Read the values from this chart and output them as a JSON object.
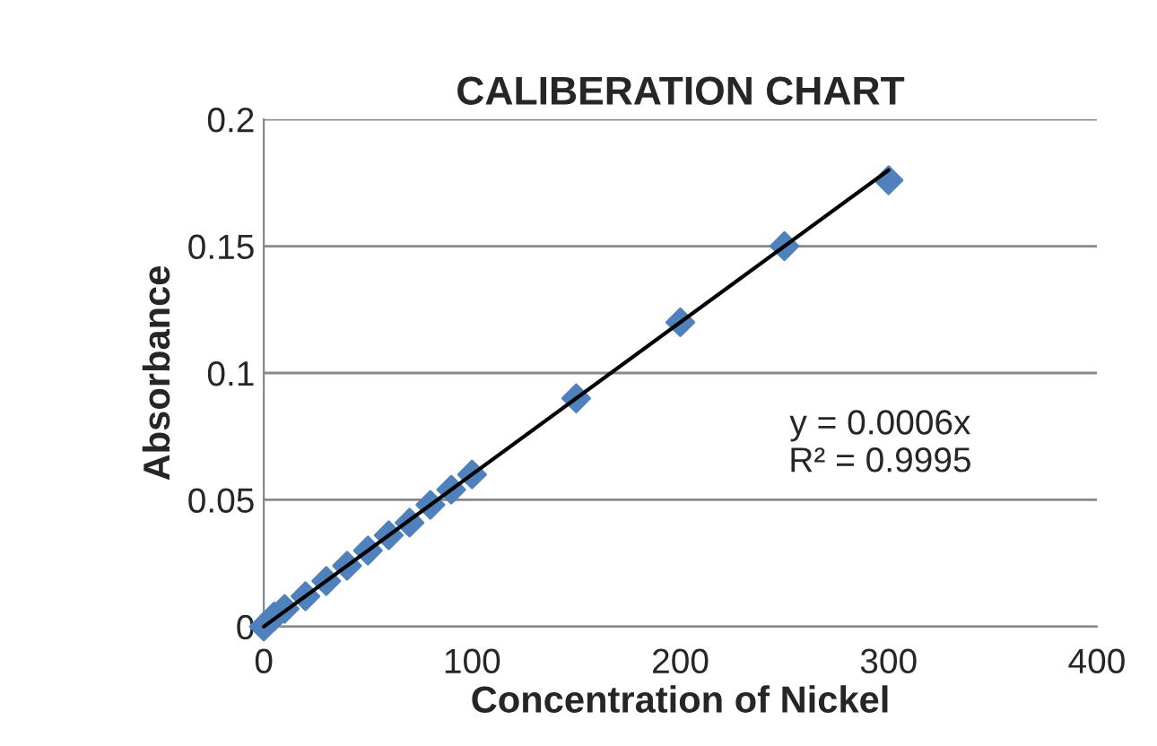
{
  "chart_data": {
    "type": "scatter",
    "title": "CALIBERATION CHART",
    "xlabel": "Concentration of Nickel",
    "ylabel": "Absorbance",
    "xlim": [
      0,
      400
    ],
    "xticks": [
      0,
      100,
      200,
      300,
      400
    ],
    "ylim": [
      0,
      0.2
    ],
    "yticks": [
      0,
      0.05,
      0.1,
      0.15,
      0.2
    ],
    "grid": "y",
    "series": [
      {
        "marker": "diamond",
        "color": "#4f81bd",
        "x": [
          0,
          5,
          10,
          20,
          30,
          40,
          50,
          60,
          70,
          80,
          90,
          100,
          150,
          200,
          250,
          300
        ],
        "values": [
          0,
          0.004,
          0.007,
          0.012,
          0.018,
          0.024,
          0.03,
          0.036,
          0.041,
          0.048,
          0.054,
          0.06,
          0.09,
          0.12,
          0.15,
          0.176
        ]
      },
      {
        "type": "line",
        "color": "#000000",
        "x": [
          0,
          300
        ],
        "values": [
          0,
          0.18
        ]
      }
    ],
    "annotations": [
      "y = 0.0006x\nR² = 0.9995"
    ]
  }
}
